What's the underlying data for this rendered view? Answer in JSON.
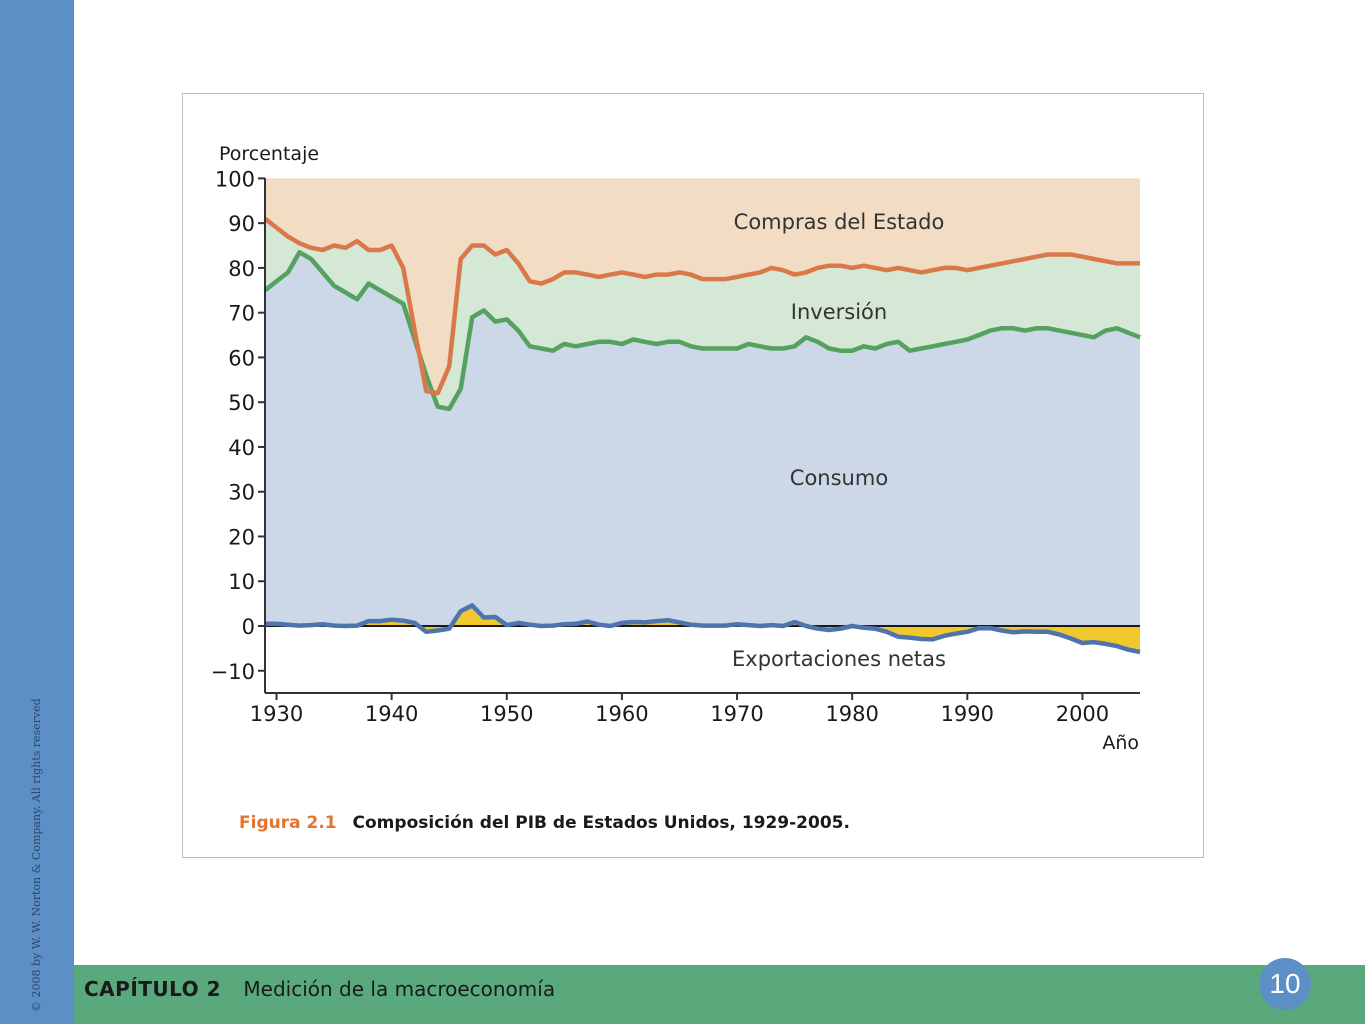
{
  "slide": {
    "copyright": "© 2008 by W. W. Norton & Company. All rights reserved",
    "chapter_label": "CAPÍTULO 2",
    "chapter_title": "Medición de la macroeconomía",
    "page_number": "10"
  },
  "figure": {
    "label": "Figura 2.1",
    "title": "Composición del PIB de Estados Unidos, 1929-2005."
  },
  "colors": {
    "consumption_fill": "#ccd8e7",
    "investment_fill": "#d5e7d5",
    "government_fill": "#f3dcc4",
    "net_exports_fill": "#f0c82d",
    "green_line": "#55a160",
    "orange_line": "#d9794a",
    "blue_line": "#4e74ae"
  },
  "chart_data": {
    "type": "area",
    "ylabel": "Porcentaje",
    "xlabel": "Año",
    "xlim": [
      1929,
      2005
    ],
    "ylim": [
      -15,
      100
    ],
    "y_ticks": [
      "100",
      "90",
      "80",
      "70",
      "60",
      "50",
      "40",
      "30",
      "20",
      "10",
      "0",
      "−10"
    ],
    "x_ticks": [
      "1930",
      "1940",
      "1950",
      "1960",
      "1970",
      "1980",
      "1990",
      "2000"
    ],
    "area_labels": [
      "Compras del Estado",
      "Inversión",
      "Consumo",
      "Exportaciones netas"
    ],
    "x": [
      1929,
      1930,
      1931,
      1932,
      1933,
      1934,
      1935,
      1936,
      1937,
      1938,
      1939,
      1940,
      1941,
      1942,
      1943,
      1944,
      1945,
      1946,
      1947,
      1948,
      1949,
      1950,
      1951,
      1952,
      1953,
      1954,
      1955,
      1956,
      1957,
      1958,
      1959,
      1960,
      1961,
      1962,
      1963,
      1964,
      1965,
      1966,
      1967,
      1968,
      1969,
      1970,
      1971,
      1972,
      1973,
      1974,
      1975,
      1976,
      1977,
      1978,
      1979,
      1980,
      1981,
      1982,
      1983,
      1984,
      1985,
      1986,
      1987,
      1988,
      1989,
      1990,
      1991,
      1992,
      1993,
      1994,
      1995,
      1996,
      1997,
      1998,
      1999,
      2000,
      2001,
      2002,
      2003,
      2004,
      2005
    ],
    "series": [
      {
        "name": "Consumo",
        "values": [
          75,
          77,
          79,
          83.5,
          82,
          79,
          76,
          74.5,
          73,
          76.5,
          75,
          73.5,
          72,
          64,
          56,
          49,
          48.5,
          53,
          69,
          70.5,
          68,
          68.5,
          66,
          62.5,
          62,
          61.5,
          63,
          62.5,
          63,
          63.5,
          63.5,
          63,
          64,
          63.5,
          63,
          63.5,
          63.5,
          62.5,
          62,
          62,
          62,
          62,
          63,
          62.5,
          62,
          62,
          62.5,
          64.5,
          63.5,
          62,
          61.5,
          61.5,
          62.5,
          62,
          63,
          63.5,
          61.5,
          62,
          62.5,
          63,
          63.5,
          64,
          65,
          66,
          66.5,
          66.5,
          66,
          66.5,
          66.5,
          66,
          65.5,
          65,
          64.5,
          66,
          66.5,
          65.5,
          64.5
        ]
      },
      {
        "name": "Compras del Estado",
        "values": [
          91,
          89,
          87,
          85.5,
          84.5,
          84,
          85,
          84.5,
          86,
          84,
          84,
          85,
          80,
          66,
          52.5,
          52,
          58,
          82,
          85,
          85,
          83,
          84,
          81,
          77,
          76.5,
          77.5,
          79,
          79,
          78.5,
          78,
          78.5,
          79,
          78.5,
          78,
          78.5,
          78.5,
          79,
          78.5,
          77.5,
          77.5,
          77.5,
          78,
          78.5,
          79,
          80,
          79.5,
          78.5,
          79,
          80,
          80.5,
          80.5,
          80,
          80.5,
          80,
          79.5,
          80,
          79.5,
          79,
          79.5,
          80,
          80,
          79.5,
          80,
          80.5,
          81,
          81.5,
          82,
          82.5,
          83,
          83,
          83,
          82.5,
          82,
          81.5,
          81,
          81,
          81
        ]
      },
      {
        "name": "Exportaciones netas",
        "values": [
          0.5,
          0.5,
          0.3,
          0.1,
          0.2,
          0.4,
          0.1,
          0,
          0.1,
          1.1,
          1.1,
          1.4,
          1.2,
          0.7,
          -1.3,
          -1,
          -0.6,
          3.3,
          4.6,
          1.9,
          2,
          0.2,
          0.7,
          0.3,
          0,
          0.1,
          0.4,
          0.5,
          1,
          0.3,
          0,
          0.7,
          0.9,
          0.8,
          1.1,
          1.3,
          0.8,
          0.3,
          0.1,
          0.1,
          0.1,
          0.4,
          0.2,
          0,
          0.2,
          0,
          0.9,
          0,
          -0.6,
          -0.9,
          -0.6,
          0,
          -0.4,
          -0.6,
          -1.3,
          -2.4,
          -2.6,
          -2.9,
          -3,
          -2.2,
          -1.7,
          -1.3,
          -0.5,
          -0.5,
          -1,
          -1.4,
          -1.2,
          -1.3,
          -1.3,
          -1.9,
          -2.8,
          -3.8,
          -3.6,
          -4,
          -4.5,
          -5.3,
          -5.8
        ]
      }
    ]
  }
}
